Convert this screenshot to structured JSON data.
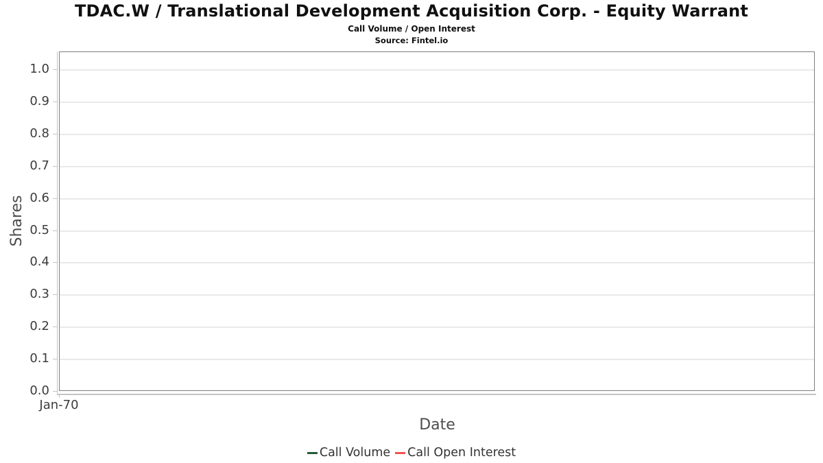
{
  "chart_data": {
    "type": "line",
    "title": "TDAC.W / Translational Development Acquisition Corp. - Equity Warrant",
    "subtitle": "Call Volume / Open Interest",
    "source": "Source: Fintel.io",
    "xlabel": "Date",
    "ylabel": "Shares",
    "ylim": [
      0,
      1.055
    ],
    "grid": true,
    "legend_position": "bottom-center",
    "y_ticks": [
      0,
      0.1,
      0.2,
      0.3,
      0.4,
      0.5,
      0.6,
      0.7,
      0.8,
      0.9,
      1.0
    ],
    "x_ticks": [
      {
        "label": "Jan-70",
        "pos": 0
      }
    ],
    "series": [
      {
        "name": "Call Volume",
        "color": "#275939",
        "x": [],
        "values": []
      },
      {
        "name": "Call Open Interest",
        "color": "#f4524f",
        "x": [],
        "values": []
      }
    ]
  },
  "colors": {
    "call_volume_green": "#275939",
    "call_open_interest_red": "#f4524f",
    "gridline": "#e9e9e9",
    "plot_border": "#7d7d7d",
    "axis_line": "#c4c4c4"
  }
}
